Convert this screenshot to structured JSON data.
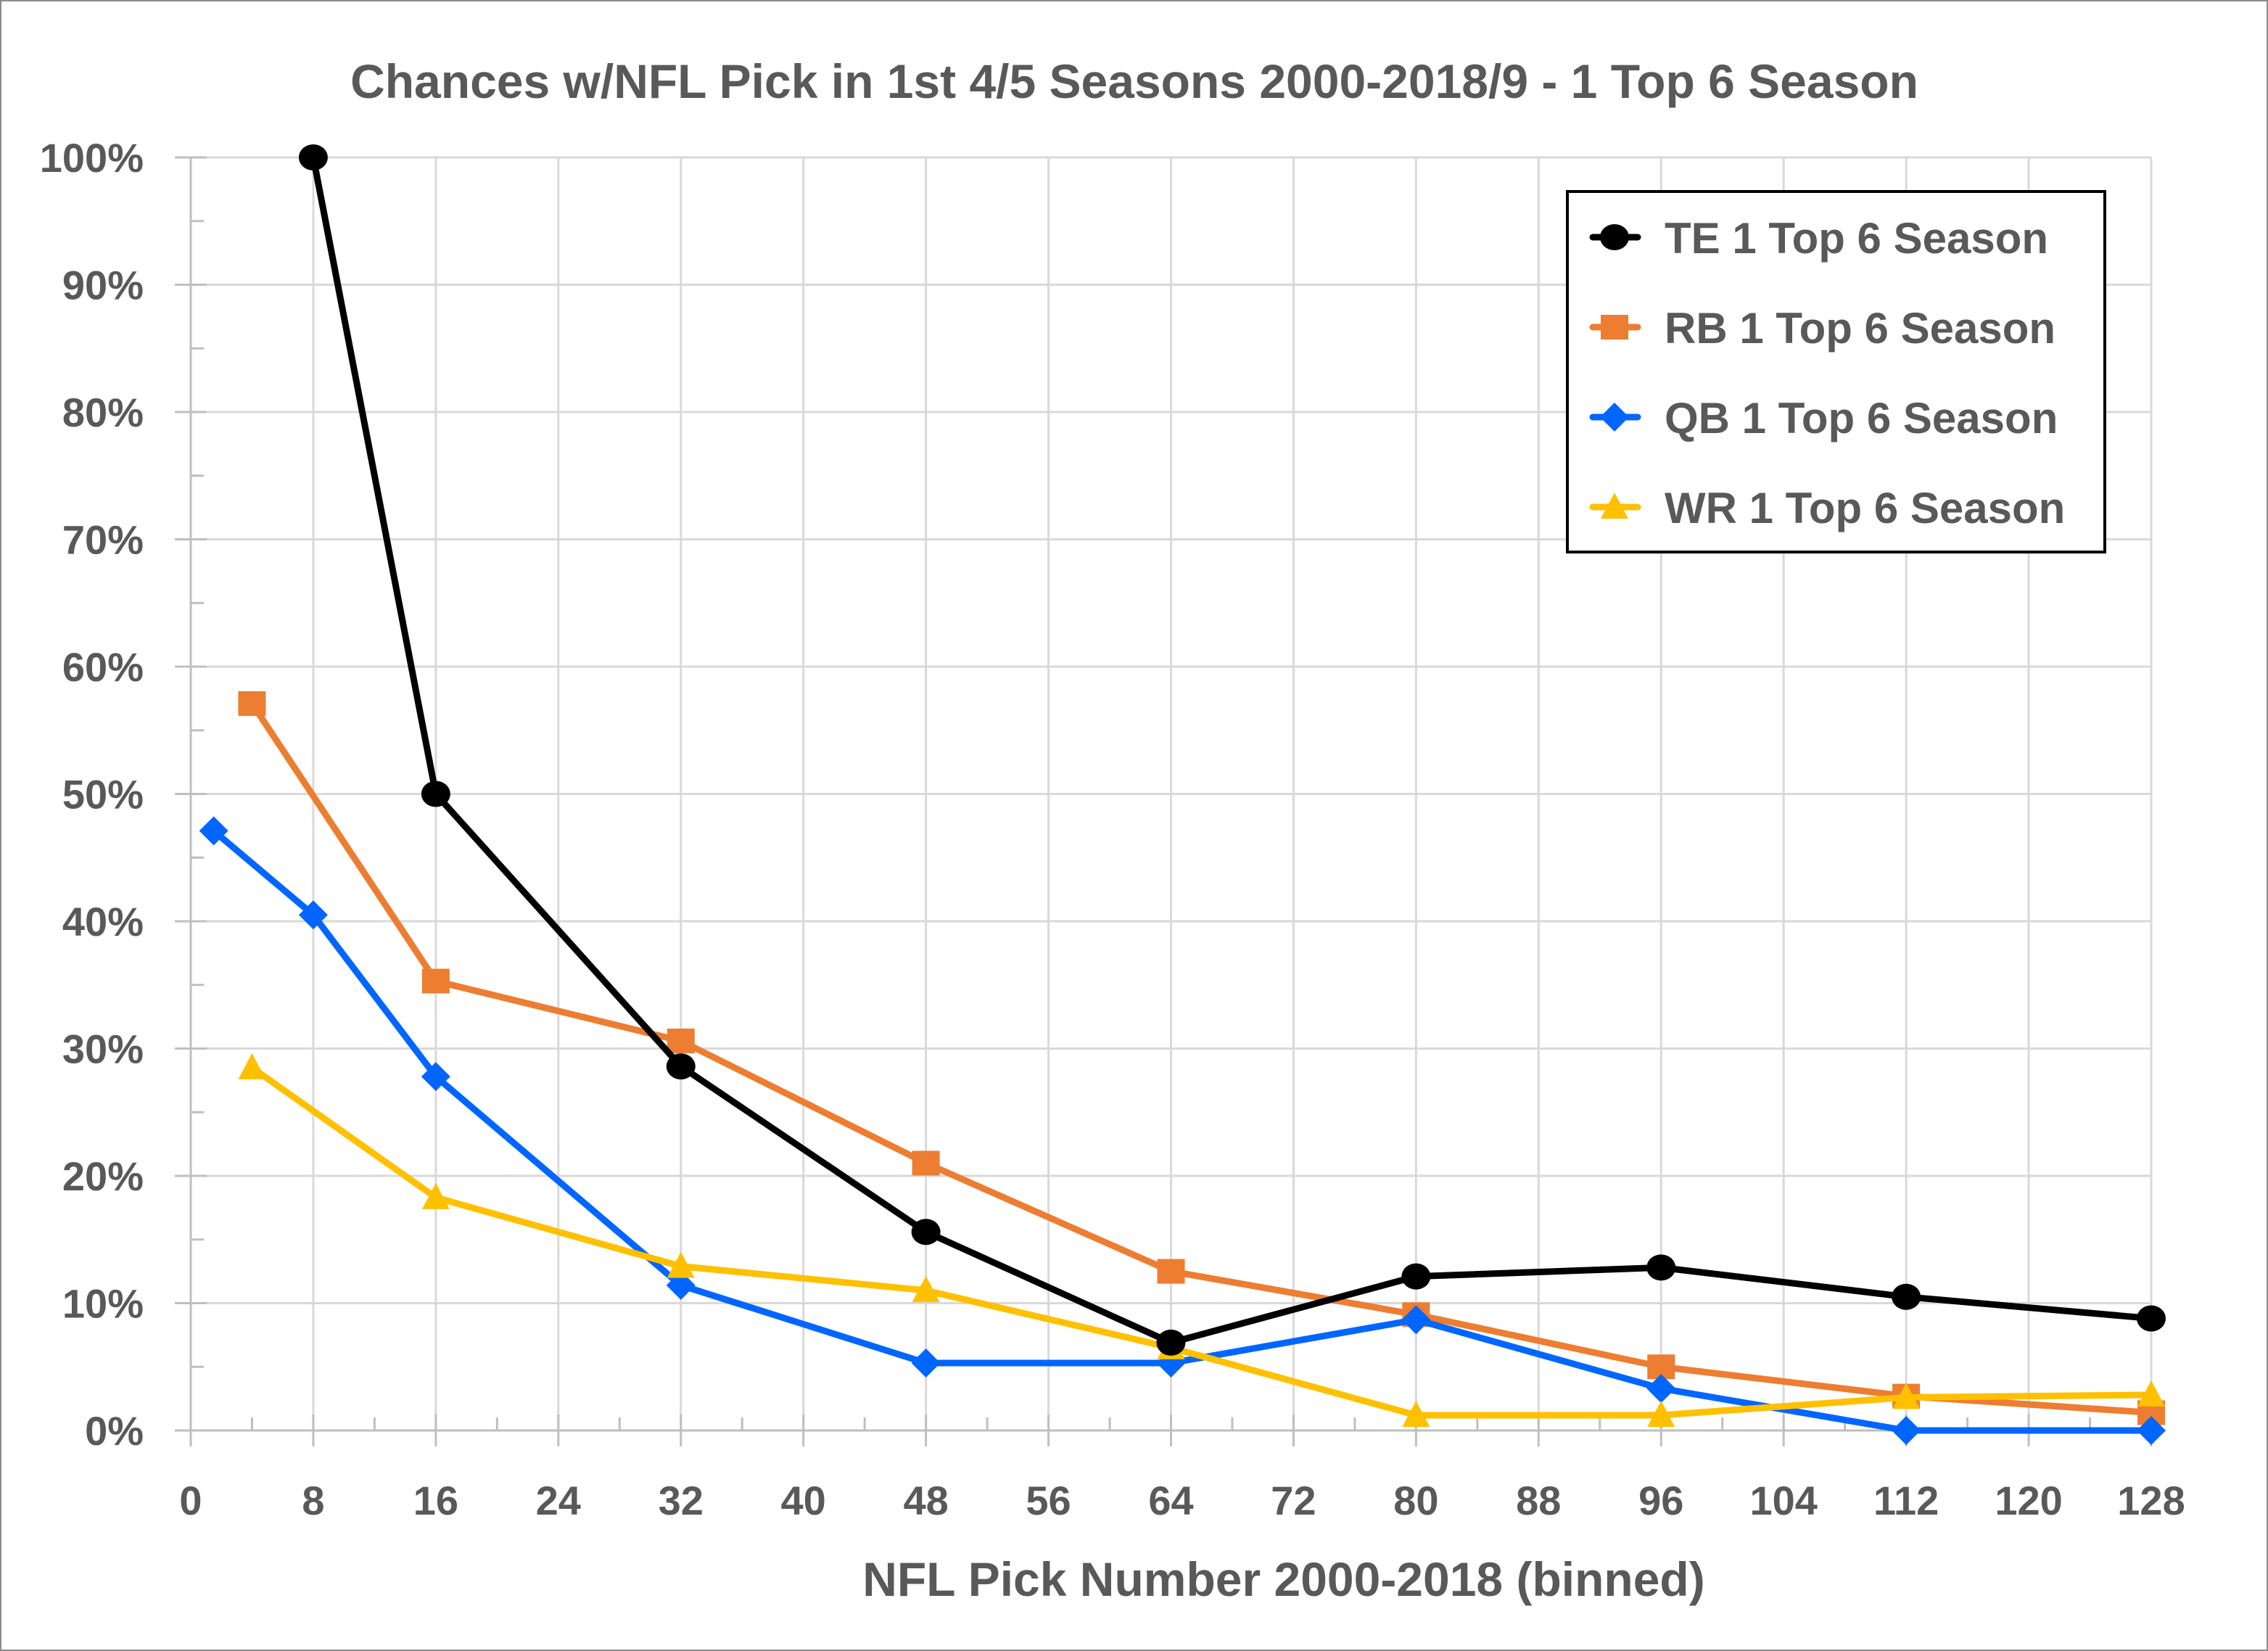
{
  "chart_data": {
    "type": "line",
    "title": "Chances w/NFL Pick in 1st 4/5 Seasons 2000-2018/9 - 1 Top 6 Season",
    "xlabel": "NFL Pick Number 2000-2018 (binned)",
    "ylabel": "",
    "xlim": [
      0,
      128
    ],
    "ylim": [
      0,
      100
    ],
    "x_ticks": [
      "0",
      "8",
      "16",
      "24",
      "32",
      "40",
      "48",
      "56",
      "64",
      "72",
      "80",
      "88",
      "96",
      "104",
      "112",
      "120",
      "128"
    ],
    "x_tick_values": [
      0,
      8,
      16,
      24,
      32,
      40,
      48,
      56,
      64,
      72,
      80,
      88,
      96,
      104,
      112,
      120,
      128
    ],
    "y_ticks": [
      "0%",
      "10%",
      "20%",
      "30%",
      "40%",
      "50%",
      "60%",
      "70%",
      "80%",
      "90%",
      "100%"
    ],
    "y_tick_values": [
      0,
      10,
      20,
      30,
      40,
      50,
      60,
      70,
      80,
      90,
      100
    ],
    "grid": true,
    "legend_position": "top-right",
    "series": [
      {
        "name": "TE 1 Top 6 Season",
        "color": "#000000",
        "marker": "circle",
        "x": [
          8,
          16,
          32,
          48,
          64,
          80,
          96,
          112,
          128
        ],
        "values": [
          100,
          50,
          28.6,
          15.6,
          6.9,
          12.1,
          12.8,
          10.5,
          8.8
        ]
      },
      {
        "name": "RB 1 Top 6 Season",
        "color": "#ED7D31",
        "marker": "square",
        "x": [
          4,
          16,
          32,
          48,
          64,
          80,
          96,
          112,
          128
        ],
        "values": [
          57.1,
          35.3,
          30.6,
          21.0,
          12.5,
          9.1,
          5.0,
          2.7,
          1.4
        ]
      },
      {
        "name": "QB 1 Top 6 Season",
        "color": "#0066FF",
        "marker": "diamond",
        "x": [
          1.5,
          8,
          16,
          32,
          48,
          64,
          80,
          96,
          112,
          128
        ],
        "values": [
          47.1,
          40.5,
          27.8,
          11.4,
          5.3,
          5.3,
          8.7,
          3.3,
          0,
          0
        ]
      },
      {
        "name": "WR 1 Top 6 Season",
        "color": "#FFC000",
        "marker": "triangle",
        "x": [
          4,
          16,
          32,
          48,
          64,
          80,
          96,
          112,
          128
        ],
        "values": [
          28.5,
          18.3,
          12.9,
          11.0,
          6.5,
          1.2,
          1.2,
          2.6,
          2.8
        ]
      }
    ]
  }
}
